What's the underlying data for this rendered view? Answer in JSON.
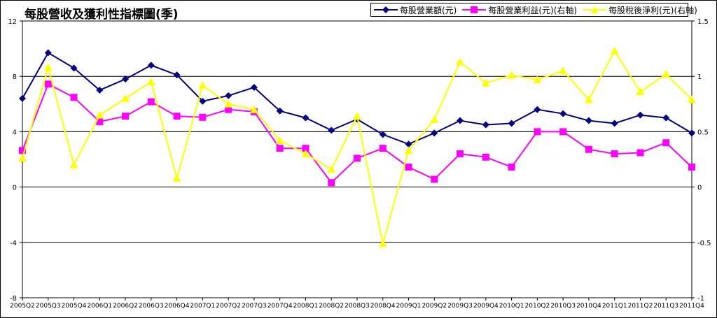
{
  "page": {
    "title": "每股營收及獲利性指標圖(季)"
  },
  "chart_data": {
    "type": "line",
    "categories": [
      "2005Q2",
      "2005Q3",
      "2005Q4",
      "2006Q1",
      "2006Q2",
      "2006Q3",
      "2006Q4",
      "2007Q1",
      "2007Q2",
      "2007Q3",
      "2007Q4",
      "2008Q1",
      "2008Q2",
      "2008Q3",
      "2008Q4",
      "2009Q1",
      "2009Q2",
      "2009Q3",
      "2009Q4",
      "2010Q1",
      "2010Q2",
      "2010Q3",
      "2010Q4",
      "2011Q1",
      "2011Q2",
      "2011Q3",
      "2011Q4"
    ],
    "y_left": {
      "min": -8,
      "max": 12,
      "ticks": [
        "-8",
        "-4",
        "0",
        "4",
        "8",
        "12"
      ]
    },
    "y_right": {
      "min": -1,
      "max": 1.5,
      "ticks": [
        "-1",
        "-0.5",
        "0",
        "0.5",
        "1",
        "1.5"
      ]
    },
    "grid": "horizontal",
    "legend_position": "top-right",
    "series": [
      {
        "name": "每股營業額(元)",
        "axis": "left",
        "color": "#000080",
        "marker": "diamond",
        "values": [
          6.4,
          9.7,
          8.6,
          7.0,
          7.8,
          8.8,
          8.1,
          6.2,
          6.6,
          7.2,
          5.5,
          5.0,
          4.1,
          4.9,
          3.8,
          3.1,
          3.9,
          4.8,
          4.5,
          4.6,
          5.6,
          5.3,
          4.8,
          4.6,
          5.2,
          5.0,
          3.9
        ]
      },
      {
        "name": "每股營業利益(元)(右軸)",
        "axis": "right",
        "color": "#ff00ff",
        "marker": "square",
        "values": [
          0.33,
          0.93,
          0.81,
          0.59,
          0.64,
          0.77,
          0.64,
          0.63,
          0.7,
          0.68,
          0.35,
          0.35,
          0.04,
          0.26,
          0.35,
          0.18,
          0.07,
          0.3,
          0.27,
          0.18,
          0.5,
          0.5,
          0.34,
          0.3,
          0.31,
          0.4,
          0.18
        ]
      },
      {
        "name": "每股稅後淨利(元)(右軸)",
        "axis": "right",
        "color": "#ffff00",
        "marker": "triangle",
        "values": [
          0.26,
          1.08,
          0.2,
          0.65,
          0.8,
          0.95,
          0.08,
          0.92,
          0.75,
          0.7,
          0.42,
          0.3,
          0.16,
          0.64,
          -0.51,
          0.33,
          0.61,
          1.13,
          0.94,
          1.01,
          0.97,
          1.05,
          0.79,
          1.23,
          0.86,
          1.02,
          0.79
        ]
      }
    ]
  }
}
